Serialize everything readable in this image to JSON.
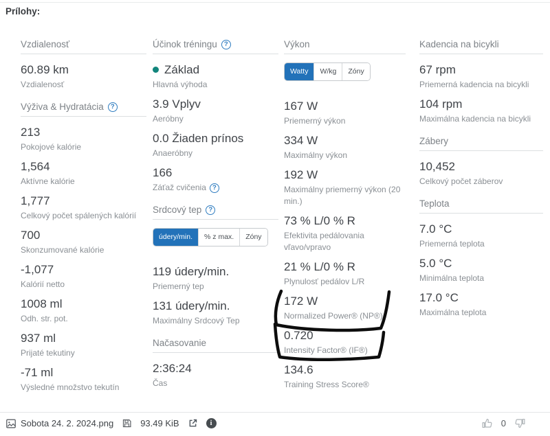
{
  "page": {
    "attachments_title": "Prílohy:"
  },
  "columns": [
    {
      "sections": [
        {
          "title": "Vzdialenosť",
          "help": false,
          "stats": [
            {
              "value": "60.89 km",
              "label": "Vzdialenosť"
            }
          ]
        },
        {
          "title": "Výživa & Hydratácia",
          "help": true,
          "stats": [
            {
              "value": "213",
              "label": "Pokojové kalórie"
            },
            {
              "value": "1,564",
              "label": "Aktívne kalórie"
            },
            {
              "value": "1,777",
              "label": "Celkový počet spálených kalórií"
            },
            {
              "value": "700",
              "label": "Skonzumované kalórie"
            },
            {
              "value": "-1,077",
              "label": "Kalórií netto"
            },
            {
              "value": "1008 ml",
              "label": "Odh. str. pot."
            },
            {
              "value": "937 ml",
              "label": "Prijaté tekutiny"
            },
            {
              "value": "-71 ml",
              "label": "Výsledné množstvo tekutín"
            }
          ]
        }
      ]
    },
    {
      "sections": [
        {
          "title": "Účinok tréningu",
          "help": true,
          "stats": [
            {
              "value": "Základ",
              "label": "Hlavná výhoda",
              "dot": true
            },
            {
              "value": "3.9 Vplyv",
              "label": "Aeróbny"
            },
            {
              "value": "0.0 Žiaden prínos",
              "label": "Anaeróbny"
            },
            {
              "value": "166",
              "label": "Záťaž cvičenia",
              "label_help": true
            }
          ]
        },
        {
          "title": "Srdcový tep",
          "help": true,
          "tabs": {
            "items": [
              "údery/min.",
              "% z max.",
              "Zóny"
            ],
            "selected": 0
          },
          "stats": [
            {
              "value": "119 údery/min.",
              "label": "Priemerný tep"
            },
            {
              "value": "131 údery/min.",
              "label": "Maximálny Srdcový Tep"
            }
          ]
        },
        {
          "title": "Načasovanie",
          "help": false,
          "stats": [
            {
              "value": "2:36:24",
              "label": "Čas"
            }
          ]
        }
      ]
    },
    {
      "sections": [
        {
          "title": "Výkon",
          "help": false,
          "tabs": {
            "items": [
              "Watty",
              "W/kg",
              "Zóny"
            ],
            "selected": 0
          },
          "stats": [
            {
              "value": "167 W",
              "label": "Priemerný výkon"
            },
            {
              "value": "334 W",
              "label": "Maximálny výkon"
            },
            {
              "value": "192 W",
              "label": "Maximálny priemerný výkon (20 min.)"
            },
            {
              "value": "73 % L/0 % R",
              "label": "Efektivita pedálovania vľavo/vpravo"
            },
            {
              "value": "21 % L/0 % R",
              "label": "Plynulosť pedálov L/R"
            },
            {
              "value": "172 W",
              "label": "Normalized Power® (NP®)",
              "circled": true
            },
            {
              "value": "0.720",
              "label": "Intensity Factor® (IF®)",
              "circled": true
            },
            {
              "value": "134.6",
              "label": "Training Stress Score®"
            }
          ]
        }
      ]
    },
    {
      "sections": [
        {
          "title": "Kadencia na bicykli",
          "help": false,
          "stats": [
            {
              "value": "67 rpm",
              "label": "Priemerná kadencia na bicykli"
            },
            {
              "value": "104 rpm",
              "label": "Maximálna kadencia na bicykli"
            }
          ]
        },
        {
          "title": "Zábery",
          "help": false,
          "stats": [
            {
              "value": "10,452",
              "label": "Celkový počet záberov"
            }
          ]
        },
        {
          "title": "Teplota",
          "help": false,
          "stats": [
            {
              "value": "7.0 °C",
              "label": "Priemerná teplota"
            },
            {
              "value": "5.0 °C",
              "label": "Minimálna teplota"
            },
            {
              "value": "17.0 °C",
              "label": "Maximálna teplota"
            }
          ]
        }
      ]
    }
  ],
  "footer": {
    "file_name": "Sobota 24. 2. 2024.png",
    "file_size": "93.49 KiB",
    "like_count": "0"
  },
  "colors": {
    "accent_blue": "#2272b9",
    "benefit_dot": "#12857c",
    "annotation": "#0d0d0d"
  }
}
